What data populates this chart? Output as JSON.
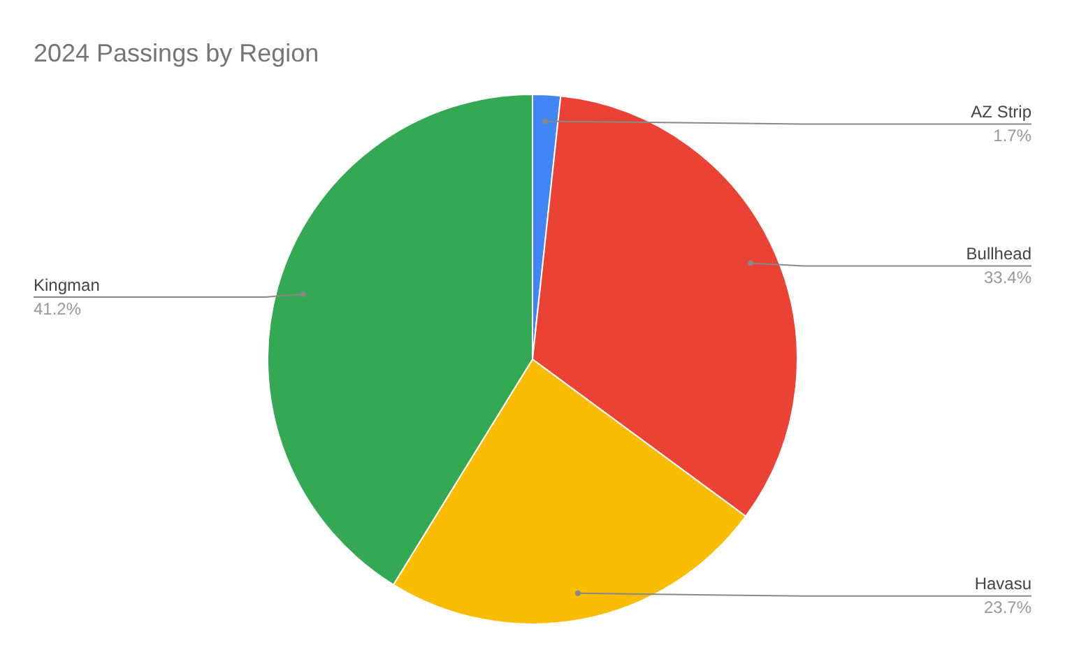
{
  "chart_data": {
    "type": "pie",
    "title": "2024 Passings by Region",
    "categories": [
      "AZ Strip",
      "Bullhead",
      "Havasu",
      "Kingman"
    ],
    "values": [
      1.7,
      33.4,
      23.7,
      41.2
    ],
    "value_labels": [
      "1.7%",
      "33.4%",
      "23.7%",
      "41.2%"
    ],
    "colors": [
      "#4285f4",
      "#ea4335",
      "#fbbc04",
      "#34a853"
    ],
    "legend": false
  }
}
